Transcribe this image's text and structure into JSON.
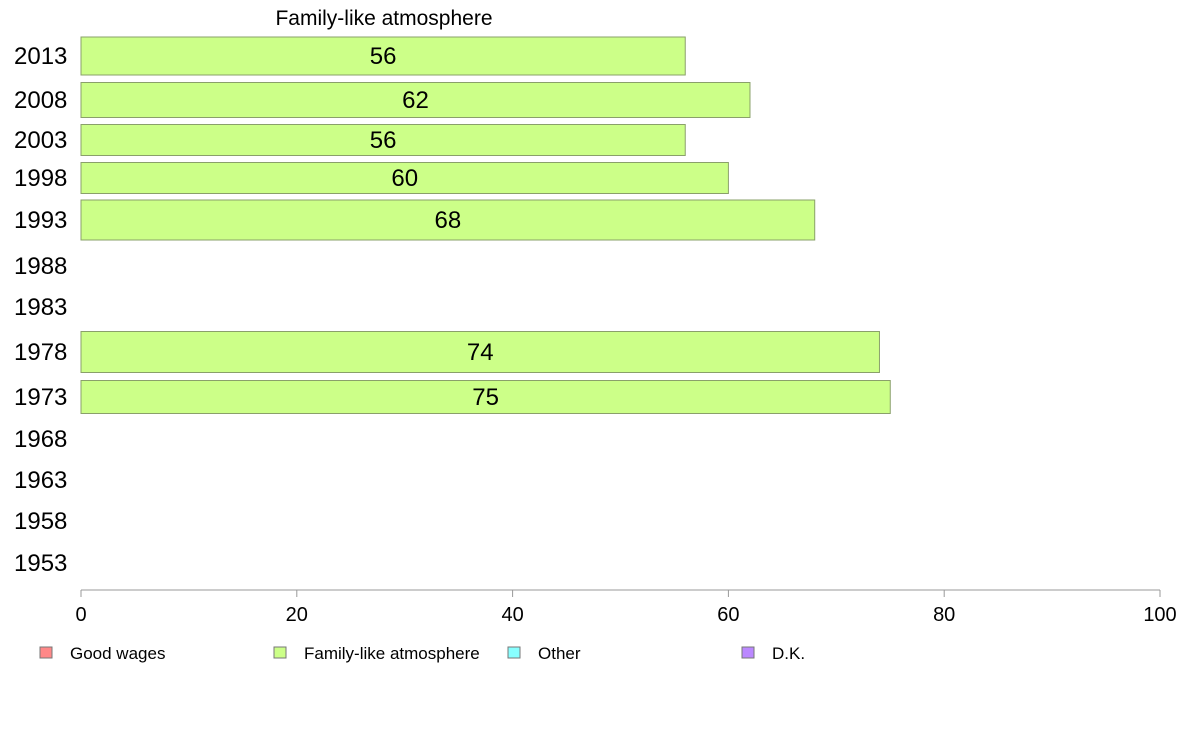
{
  "chart_data": {
    "type": "bar",
    "orientation": "horizontal",
    "title": "Family-like atmosphere",
    "categories": [
      "2013",
      "2008",
      "2003",
      "1998",
      "1993",
      "1988",
      "1983",
      "1978",
      "1973",
      "1968",
      "1963",
      "1958",
      "1953"
    ],
    "series": [
      {
        "name": "Family-like atmosphere",
        "color": "#ccff88",
        "values": [
          56,
          62,
          56,
          60,
          68,
          null,
          null,
          74,
          75,
          null,
          null,
          null,
          null
        ]
      }
    ],
    "xlim": [
      0,
      100
    ],
    "x_ticks": [
      0,
      20,
      40,
      60,
      80,
      100
    ],
    "grid": false,
    "legend": {
      "placement": "bottom",
      "items": [
        {
          "label": "Good wages",
          "color": "#ff8888"
        },
        {
          "label": "Family-like atmosphere",
          "color": "#ccff88"
        },
        {
          "label": "Other",
          "color": "#88ffff"
        },
        {
          "label": "D.K.",
          "color": "#bb88ff"
        }
      ]
    }
  }
}
